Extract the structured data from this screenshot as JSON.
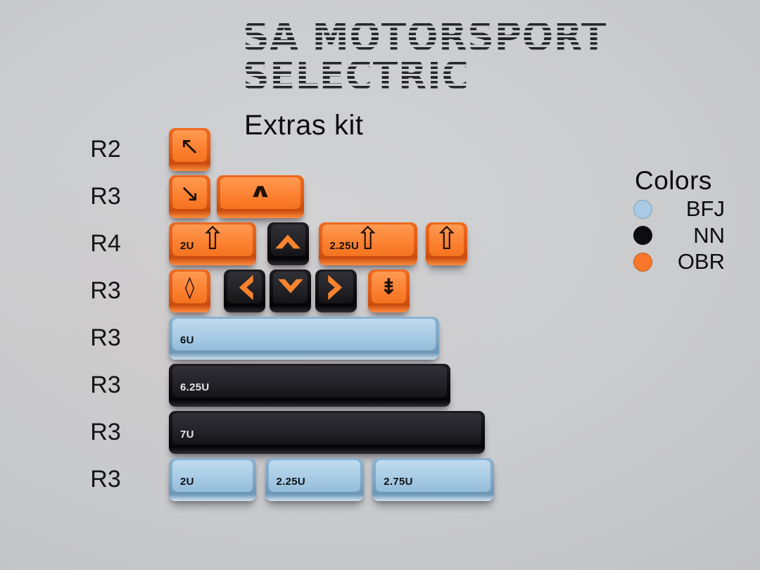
{
  "title": {
    "line1": "SA MOTORSPORT",
    "line2": "SELECTRIC",
    "subtitle": "Extras kit"
  },
  "palette": {
    "background": "#c7c8ca",
    "OBR": "#f8772a",
    "NN": "#131316",
    "BFJ": "#a9cbe5",
    "title_ink": "#26262a"
  },
  "legend": {
    "heading": "Colors",
    "entries": [
      {
        "code": "BFJ",
        "color": "#a9cbe5"
      },
      {
        "code": "NN",
        "color": "#0d0d0f"
      },
      {
        "code": "OBR",
        "color": "#f8772a"
      }
    ]
  },
  "rows": [
    {
      "label": "R2",
      "keys": [
        {
          "u": 1,
          "x": 0,
          "color": "OBR",
          "icon": "arrow-up-left",
          "glyph": "↖",
          "glyph_class": "arrow"
        }
      ]
    },
    {
      "label": "R3",
      "keys": [
        {
          "u": 1,
          "x": 0,
          "color": "OBR",
          "icon": "arrow-down-right",
          "glyph": "↘",
          "glyph_class": "arrow"
        },
        {
          "u": 2,
          "x": 1.05,
          "color": "OBR",
          "icon": "caret",
          "glyph": "∧",
          "glyph_class": "caret"
        }
      ]
    },
    {
      "label": "R4",
      "keys": [
        {
          "u": 2,
          "x": 0,
          "color": "OBR",
          "icon": "shift-arrow",
          "glyph": "⇧",
          "glyph_class": "shift",
          "size_label": "2U"
        },
        {
          "u": 1,
          "x": 2.15,
          "color": "NN",
          "icon": "chevron-up"
        },
        {
          "u": 2.25,
          "x": 3.27,
          "color": "OBR",
          "icon": "shift-arrow",
          "glyph": "⇧",
          "glyph_class": "shift",
          "size_label": "2.25U"
        },
        {
          "u": 1,
          "x": 5.62,
          "color": "OBR",
          "icon": "shift-arrow",
          "glyph": "⇧",
          "glyph_class": "shift"
        }
      ]
    },
    {
      "label": "R3",
      "keys": [
        {
          "u": 1,
          "x": 0,
          "color": "OBR",
          "icon": "diamond",
          "glyph": "◊",
          "glyph_class": "diamond"
        },
        {
          "u": 1,
          "x": 1.2,
          "color": "NN",
          "icon": "chevron-left"
        },
        {
          "u": 1,
          "x": 2.2,
          "color": "NN",
          "icon": "chevron-down"
        },
        {
          "u": 1,
          "x": 3.2,
          "color": "NN",
          "icon": "chevron-right"
        },
        {
          "u": 1,
          "x": 4.35,
          "color": "OBR",
          "icon": "page-down-arrow",
          "glyph": "⇟",
          "glyph_class": "pgdown"
        }
      ]
    },
    {
      "label": "R3",
      "keys": [
        {
          "u": 6,
          "x": 0,
          "color": "BFJ",
          "size_label": "6U"
        }
      ]
    },
    {
      "label": "R3",
      "keys": [
        {
          "u": 6.25,
          "x": 0,
          "color": "NN",
          "size_label": "6.25U"
        }
      ]
    },
    {
      "label": "R3",
      "keys": [
        {
          "u": 7,
          "x": 0,
          "color": "NN",
          "size_label": "7U"
        }
      ]
    },
    {
      "label": "R3",
      "keys": [
        {
          "u": 2,
          "x": 0,
          "color": "BFJ",
          "size_label": "2U"
        },
        {
          "u": 2.25,
          "x": 2.1,
          "color": "BFJ",
          "size_label": "2.25U"
        },
        {
          "u": 2.75,
          "x": 4.45,
          "color": "BFJ",
          "size_label": "2.75U"
        }
      ]
    }
  ]
}
